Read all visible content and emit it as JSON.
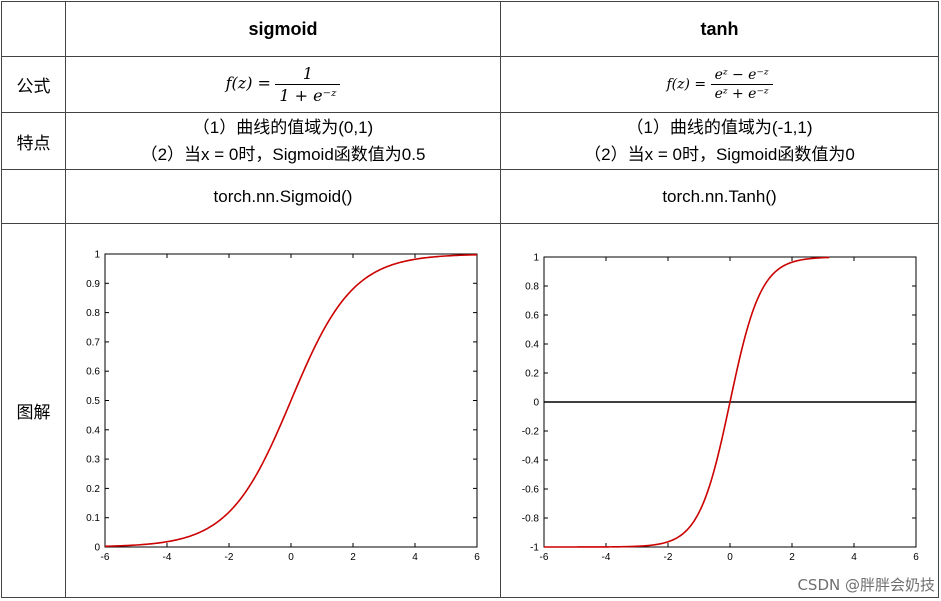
{
  "headers": {
    "sigmoid": "sigmoid",
    "tanh": "tanh"
  },
  "rows": {
    "formula_label": "公式",
    "feature_label": "特点",
    "plot_label": "图解"
  },
  "sigmoid": {
    "formula_lhs": "f(z) =",
    "formula_num": "1",
    "formula_den": "1 + e⁻ᶻ",
    "feature_1": "（1）曲线的值域为(0,1)",
    "feature_2": "（2）当x = 0时，Sigmoid函数值为0.5",
    "code": "torch.nn.Sigmoid()"
  },
  "tanh": {
    "formula_lhs": "f(z) =",
    "formula_num": "eᶻ − e⁻ᶻ",
    "formula_den": "eᶻ + e⁻ᶻ",
    "feature_1": "（1）曲线的值域为(-1,1)",
    "feature_2": "（2）当x = 0时，Sigmoid函数值为0",
    "code": "torch.nn.Tanh()"
  },
  "watermark": "CSDN @胖胖会奶技",
  "chart_data": [
    {
      "type": "line",
      "function": "sigmoid",
      "xlim": [
        -6,
        6
      ],
      "ylim": [
        0,
        1
      ],
      "xticks": [
        -6,
        -4,
        -2,
        0,
        2,
        4,
        6
      ],
      "yticks": [
        0,
        0.1,
        0.2,
        0.3,
        0.4,
        0.5,
        0.6,
        0.7,
        0.8,
        0.9,
        1
      ],
      "line_color": "#cc0000",
      "x": [
        -6,
        -5,
        -4,
        -3,
        -2,
        -1,
        0,
        1,
        2,
        3,
        4,
        5,
        6
      ],
      "y": [
        0.0025,
        0.0067,
        0.018,
        0.047,
        0.119,
        0.269,
        0.5,
        0.731,
        0.881,
        0.953,
        0.982,
        0.993,
        0.9975
      ]
    },
    {
      "type": "line",
      "function": "tanh",
      "xlim": [
        -6,
        6
      ],
      "ylim": [
        -1,
        1
      ],
      "xticks": [
        -6,
        -4,
        -2,
        0,
        2,
        4,
        6
      ],
      "yticks": [
        -1,
        -0.8,
        -0.6,
        -0.4,
        -0.2,
        0,
        0.2,
        0.4,
        0.6,
        0.8,
        1
      ],
      "line_color": "#cc0000",
      "zero_line": true,
      "x": [
        -6,
        -3,
        -2.5,
        -2,
        -1.5,
        -1,
        -0.5,
        0,
        0.5,
        1,
        1.5,
        2,
        2.5,
        3
      ],
      "y": [
        -1,
        -0.995,
        -0.987,
        -0.964,
        -0.905,
        -0.762,
        -0.462,
        0,
        0.462,
        0.762,
        0.905,
        0.964,
        0.987,
        0.995
      ]
    }
  ]
}
